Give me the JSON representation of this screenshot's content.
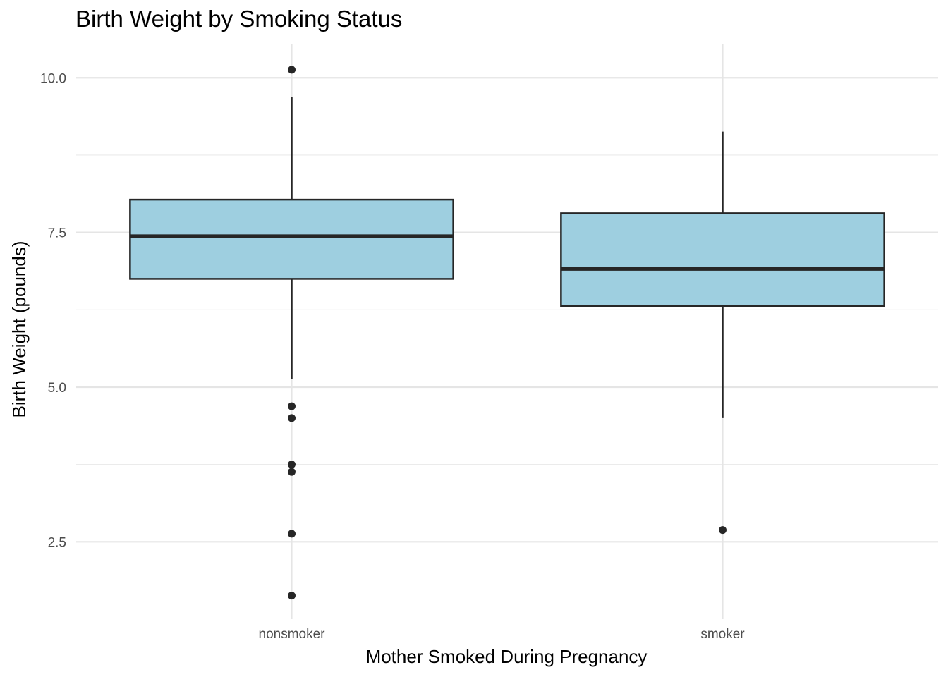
{
  "chart_data": {
    "type": "boxplot",
    "title": "Birth Weight by Smoking Status",
    "xlabel": "Mother Smoked During Pregnancy",
    "ylabel": "Birth Weight (pounds)",
    "categories": [
      "nonsmoker",
      "smoker"
    ],
    "ylim": [
      1.25,
      10.55
    ],
    "y_ticks": [
      2.5,
      5.0,
      7.5,
      10.0
    ],
    "y_tick_labels": [
      "2.5",
      "5.0",
      "7.5",
      "10.0"
    ],
    "y_minor_ticks": [
      3.75,
      6.25,
      8.75
    ],
    "grid": true,
    "box_fill": "#9ecfe0",
    "line_color": "#262626",
    "boxes": [
      {
        "category": "nonsmoker",
        "whisker_low": 5.13,
        "q1": 6.75,
        "median": 7.44,
        "q3": 8.03,
        "whisker_high": 9.69,
        "outliers": [
          10.13,
          4.69,
          4.5,
          3.75,
          3.63,
          2.63,
          1.63
        ]
      },
      {
        "category": "smoker",
        "whisker_low": 4.5,
        "q1": 6.31,
        "median": 6.91,
        "q3": 7.81,
        "whisker_high": 9.13,
        "outliers": [
          2.69
        ]
      }
    ]
  }
}
